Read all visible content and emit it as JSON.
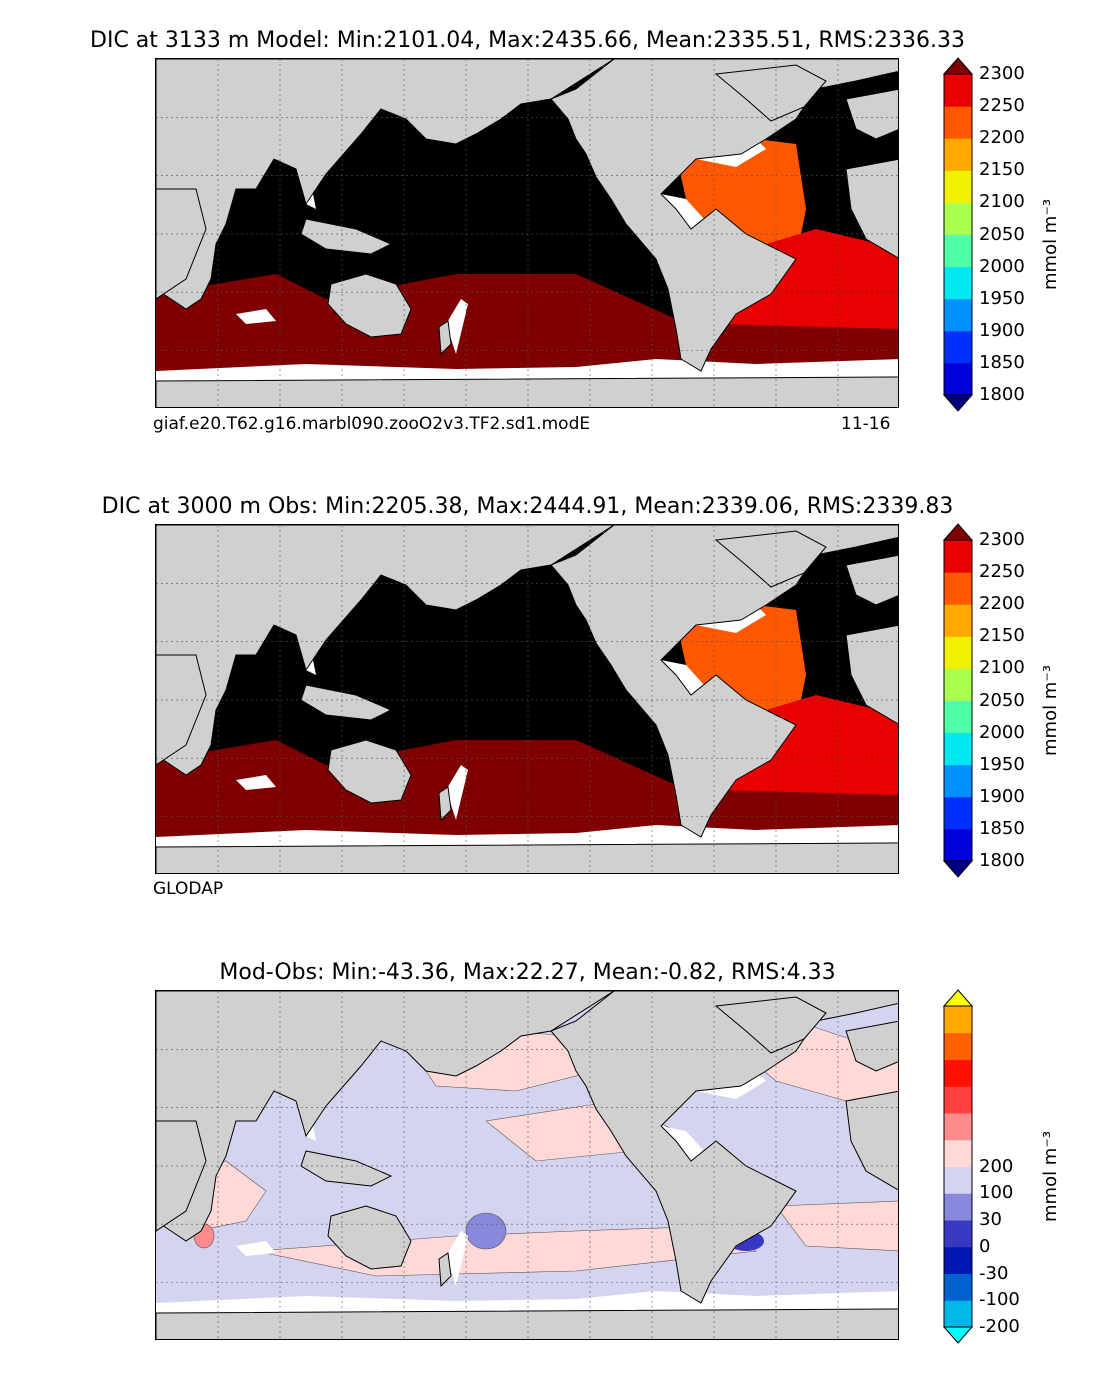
{
  "panels": [
    {
      "id": "model",
      "title": "DIC at 3133 m Model: Min:2101.04, Max:2435.66, Mean:2335.51, RMS:2336.33",
      "caption_left": "giaf.e20.T62.g16.marbl090.zooO2v3.TF2.sd1.modE",
      "caption_right": "11-16",
      "colorbar": {
        "units": "mmol m⁻³",
        "tick_labels": [
          "1800",
          "1850",
          "1900",
          "1950",
          "2000",
          "2050",
          "2100",
          "2150",
          "2200",
          "2250",
          "2300"
        ],
        "colors": [
          "#000080",
          "#0000d8",
          "#0030ff",
          "#0090ff",
          "#00e8f0",
          "#50ffa8",
          "#a8ff50",
          "#f0f000",
          "#ffa800",
          "#ff5800",
          "#e80000",
          "#7f0000"
        ]
      }
    },
    {
      "id": "obs",
      "title": "DIC at 3000 m Obs: Min:2205.38, Max:2444.91, Mean:2339.06, RMS:2339.83",
      "caption_left": "GLODAP",
      "caption_right": "",
      "colorbar": {
        "units": "mmol m⁻³",
        "tick_labels": [
          "1800",
          "1850",
          "1900",
          "1950",
          "2000",
          "2050",
          "2100",
          "2150",
          "2200",
          "2250",
          "2300"
        ],
        "colors": [
          "#000080",
          "#0000d8",
          "#0030ff",
          "#0090ff",
          "#00e8f0",
          "#50ffa8",
          "#a8ff50",
          "#f0f000",
          "#ffa800",
          "#ff5800",
          "#e80000",
          "#7f0000"
        ]
      }
    },
    {
      "id": "diff",
      "title": "Mod-Obs: Min:-43.36, Max:22.27, Mean:-0.82, RMS:4.33",
      "caption_left": "",
      "caption_right": "",
      "colorbar": {
        "units": "mmol m⁻³",
        "tick_labels": [
          "-200",
          "-100",
          "-30",
          "0",
          "30",
          "100",
          "200"
        ],
        "colors": [
          "#00ffff",
          "#00b8e8",
          "#0060d0",
          "#0018b0",
          "#3838c0",
          "#8888dc",
          "#d4d4f0",
          "#ffd8d8",
          "#ff8c8c",
          "#ff4040",
          "#ff1000",
          "#ff6000",
          "#ffa800",
          "#ffff00"
        ]
      }
    }
  ],
  "map_colors": {
    "land": "#d0d0d0",
    "no_data": "#ffffff",
    "pacific_deep": "#000000",
    "model_atlantic_north": "#ff5800",
    "model_atlantic_south": "#e80000",
    "model_southern_ocean": "#7f0000",
    "diff_negative": "#d4d4f0",
    "diff_positive": "#ffd8d8",
    "diff_strong_negative": "#3838c0"
  }
}
